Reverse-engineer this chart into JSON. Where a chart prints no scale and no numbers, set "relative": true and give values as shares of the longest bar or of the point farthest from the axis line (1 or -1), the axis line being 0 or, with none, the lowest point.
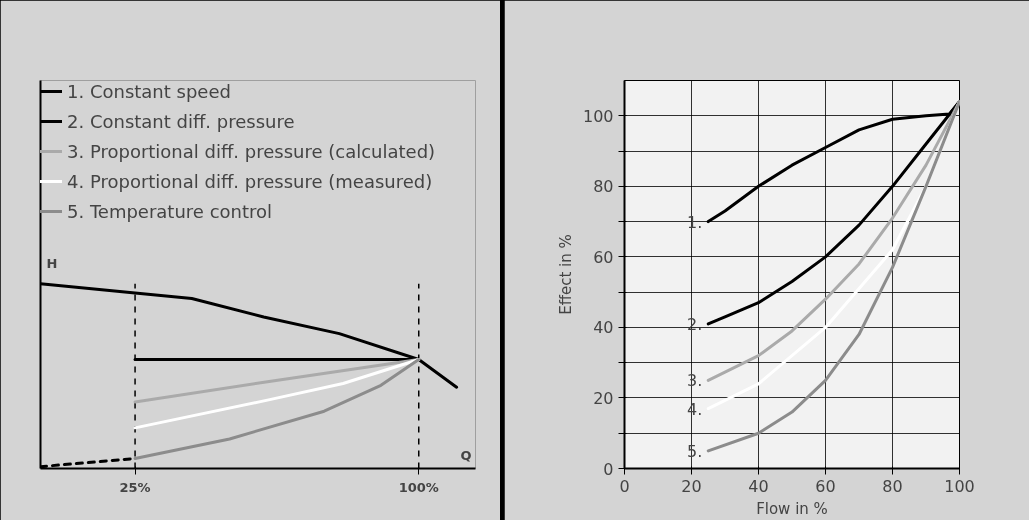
{
  "chart_data": [
    {
      "type": "line",
      "relative": true,
      "xlabel": "Q",
      "ylabel": "H",
      "xlim": [
        0,
        115
      ],
      "xticks": [
        {
          "value": 25,
          "label": "25%"
        },
        {
          "value": 100,
          "label": "100%"
        }
      ],
      "legend": "top",
      "grid": false,
      "ref_lines": [
        {
          "axis": "x",
          "value": 25,
          "label": null,
          "color": "#000000",
          "line_style": "dashed"
        },
        {
          "axis": "x",
          "value": 100,
          "label": null,
          "color": "#000000",
          "line_style": "dashed"
        }
      ],
      "series": [
        {
          "name": "1. Constant speed",
          "color": "#000000",
          "x": [
            0,
            25,
            40,
            59,
            79,
            100,
            110
          ],
          "values": [
            1.0,
            0.95,
            0.92,
            0.82,
            0.73,
            0.59,
            0.44
          ]
        },
        {
          "name": "2. Constant diff. pressure",
          "color": "#000000",
          "x": [
            25,
            100
          ],
          "values": [
            0.59,
            0.59
          ]
        },
        {
          "name": "3. Proportional diff. pressure (calculated)",
          "color": "#aaaaaa",
          "x": [
            25,
            60,
            100
          ],
          "values": [
            0.36,
            0.47,
            0.59
          ]
        },
        {
          "name": "4. Proportional diff. pressure (measured)",
          "color": "#ffffff",
          "x": [
            25,
            60,
            80,
            100
          ],
          "values": [
            0.22,
            0.37,
            0.46,
            0.59
          ]
        },
        {
          "name": "5. Temperature control",
          "color": "#8c8c8c",
          "x": [
            25,
            50,
            75,
            90,
            100
          ],
          "values": [
            0.054,
            0.16,
            0.31,
            0.45,
            0.59
          ]
        },
        {
          "color": "#000000",
          "line_style": "dashed",
          "x": [
            0,
            25
          ],
          "values": [
            0.01,
            0.054
          ]
        }
      ]
    },
    {
      "type": "line",
      "xlabel": "Flow in %",
      "ylabel": "Effect in %",
      "xlim": [
        0,
        100
      ],
      "ylim": [
        0,
        110
      ],
      "xticks": [
        0,
        20,
        40,
        60,
        80,
        100
      ],
      "yticks": [
        0,
        {
          "value": 10,
          "label": null
        },
        20,
        {
          "value": 30,
          "label": null
        },
        40,
        {
          "value": 50,
          "label": null
        },
        60,
        {
          "value": 70,
          "label": null
        },
        80,
        {
          "value": 90,
          "label": null
        },
        100
      ],
      "grid": true,
      "annotations": [
        "1.",
        "2.",
        "3.",
        "4.",
        "5."
      ],
      "series": [
        {
          "color": "#000000",
          "x": [
            25,
            30,
            40,
            50,
            60,
            70,
            80,
            90,
            97,
            100
          ],
          "values": [
            70,
            73,
            80,
            86,
            91,
            96,
            99,
            100,
            100.5,
            104
          ]
        },
        {
          "color": "#000000",
          "x": [
            25,
            30,
            40,
            50,
            60,
            70,
            80,
            90,
            100
          ],
          "values": [
            41,
            43,
            47,
            53,
            60,
            69,
            80,
            92,
            104
          ]
        },
        {
          "color": "#aaaaaa",
          "x": [
            25,
            40,
            50,
            60,
            70,
            80,
            90,
            100
          ],
          "values": [
            25,
            32,
            39,
            48,
            58,
            71,
            86,
            104
          ]
        },
        {
          "color": "#ffffff",
          "x": [
            25,
            40,
            60,
            80,
            90,
            100
          ],
          "values": [
            17,
            24,
            40,
            62,
            80,
            104
          ]
        },
        {
          "color": "#8c8c8c",
          "x": [
            25,
            40,
            50,
            60,
            70,
            80,
            90,
            100
          ],
          "values": [
            5,
            10,
            16,
            25,
            38,
            57,
            80,
            104
          ]
        }
      ]
    }
  ]
}
